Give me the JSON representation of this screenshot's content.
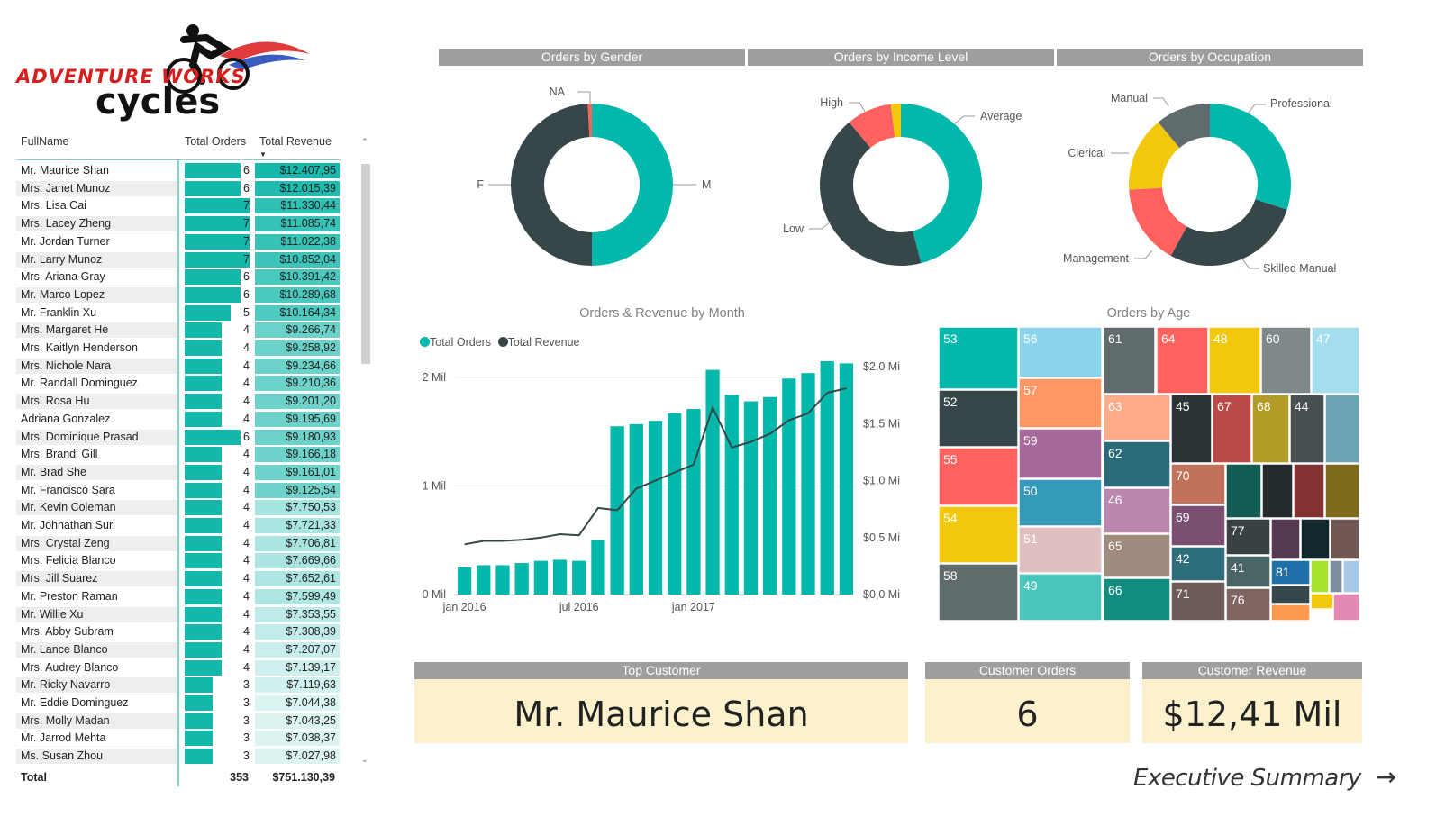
{
  "logo": {
    "line1": "ADVENTURE WORKS",
    "line2": "cycles"
  },
  "table": {
    "headers": {
      "name": "FullName",
      "orders": "Total Orders",
      "revenue": "Total Revenue"
    },
    "rows": [
      {
        "name": "Mr. Maurice Shan",
        "orders": 6,
        "revenue": "$12.407,95"
      },
      {
        "name": "Mrs. Janet Munoz",
        "orders": 6,
        "revenue": "$12.015,39"
      },
      {
        "name": "Mrs. Lisa Cai",
        "orders": 7,
        "revenue": "$11.330,44"
      },
      {
        "name": "Mrs. Lacey Zheng",
        "orders": 7,
        "revenue": "$11.085,74"
      },
      {
        "name": "Mr. Jordan Turner",
        "orders": 7,
        "revenue": "$11.022,38"
      },
      {
        "name": "Mr. Larry Munoz",
        "orders": 7,
        "revenue": "$10.852,04"
      },
      {
        "name": "Mrs. Ariana Gray",
        "orders": 6,
        "revenue": "$10.391,42"
      },
      {
        "name": "Mr. Marco Lopez",
        "orders": 6,
        "revenue": "$10.289,68"
      },
      {
        "name": "Mr. Franklin Xu",
        "orders": 5,
        "revenue": "$10.164,34"
      },
      {
        "name": "Mrs. Margaret He",
        "orders": 4,
        "revenue": "$9.266,74"
      },
      {
        "name": "Mrs. Kaitlyn Henderson",
        "orders": 4,
        "revenue": "$9.258,92"
      },
      {
        "name": "Mrs. Nichole Nara",
        "orders": 4,
        "revenue": "$9.234,66"
      },
      {
        "name": "Mr. Randall Dominguez",
        "orders": 4,
        "revenue": "$9.210,36"
      },
      {
        "name": "Mrs. Rosa Hu",
        "orders": 4,
        "revenue": "$9.201,20"
      },
      {
        "name": "Adriana Gonzalez",
        "orders": 4,
        "revenue": "$9.195,69"
      },
      {
        "name": "Mrs. Dominique Prasad",
        "orders": 6,
        "revenue": "$9.180,93"
      },
      {
        "name": "Mrs. Brandi Gill",
        "orders": 4,
        "revenue": "$9.166,18"
      },
      {
        "name": "Mr. Brad She",
        "orders": 4,
        "revenue": "$9.161,01"
      },
      {
        "name": "Mr. Francisco Sara",
        "orders": 4,
        "revenue": "$9.125,54"
      },
      {
        "name": "Mr. Kevin Coleman",
        "orders": 4,
        "revenue": "$7.750,53"
      },
      {
        "name": "Mr. Johnathan Suri",
        "orders": 4,
        "revenue": "$7.721,33"
      },
      {
        "name": "Mrs. Crystal Zeng",
        "orders": 4,
        "revenue": "$7.706,81"
      },
      {
        "name": "Mrs. Felicia Blanco",
        "orders": 4,
        "revenue": "$7.669,66"
      },
      {
        "name": "Mrs. Jill Suarez",
        "orders": 4,
        "revenue": "$7.652,61"
      },
      {
        "name": "Mr. Preston Raman",
        "orders": 4,
        "revenue": "$7.599,49"
      },
      {
        "name": "Mr. Willie Xu",
        "orders": 4,
        "revenue": "$7.353,55"
      },
      {
        "name": "Mrs. Abby Subram",
        "orders": 4,
        "revenue": "$7.308,39"
      },
      {
        "name": "Mr. Lance Blanco",
        "orders": 4,
        "revenue": "$7.207,07"
      },
      {
        "name": "Mrs. Audrey Blanco",
        "orders": 4,
        "revenue": "$7.139,17"
      },
      {
        "name": "Mr. Ricky Navarro",
        "orders": 3,
        "revenue": "$7.119,63"
      },
      {
        "name": "Mr. Eddie Dominguez",
        "orders": 3,
        "revenue": "$7.044,38"
      },
      {
        "name": "Mrs. Molly Madan",
        "orders": 3,
        "revenue": "$7.043,25"
      },
      {
        "name": "Mr. Jarrod Mehta",
        "orders": 3,
        "revenue": "$7.038,37"
      },
      {
        "name": "Ms. Susan Zhou",
        "orders": 3,
        "revenue": "$7.027,98"
      }
    ],
    "total": {
      "label": "Total",
      "orders": "353",
      "revenue": "$751.130,39"
    }
  },
  "sections": {
    "gender": "Orders by Gender",
    "income": "Orders by Income Level",
    "occupation": "Orders by Occupation",
    "month": "Orders & Revenue by Month",
    "age": "Orders by Age"
  },
  "donuts": {
    "gender": [
      {
        "label": "M",
        "value": 50,
        "color": "#01b8aa"
      },
      {
        "label": "F",
        "value": 49.2,
        "color": "#374649"
      },
      {
        "label": "NA",
        "value": 0.8,
        "color": "#fd625e"
      }
    ],
    "income": [
      {
        "label": "Average",
        "value": 46,
        "color": "#01b8aa"
      },
      {
        "label": "Low",
        "value": 43,
        "color": "#374649"
      },
      {
        "label": "High",
        "value": 9,
        "color": "#fd625e"
      },
      {
        "label": "",
        "value": 2,
        "color": "#f2c80f"
      }
    ],
    "occupation": [
      {
        "label": "Professional",
        "value": 30,
        "color": "#01b8aa"
      },
      {
        "label": "Skilled Manual",
        "value": 28,
        "color": "#374649"
      },
      {
        "label": "Management",
        "value": 16,
        "color": "#fd625e"
      },
      {
        "label": "Clerical",
        "value": 15,
        "color": "#f2c80f"
      },
      {
        "label": "Manual",
        "value": 11,
        "color": "#5f6b6d"
      }
    ]
  },
  "chart_data": {
    "type": "bar",
    "title": "Orders & Revenue by Month",
    "legend": [
      "Total Orders",
      "Total Revenue"
    ],
    "series_colors": {
      "Total Orders": "#01b8aa",
      "Total Revenue": "#374649"
    },
    "x_ticks": [
      "jan 2016",
      "jul 2016",
      "jan 2017"
    ],
    "y_left_ticks": [
      "0 Mil",
      "1 Mil",
      "2 Mil"
    ],
    "y_right_ticks": [
      "$0,0 Mi",
      "$0,5 Mi",
      "$1,0 Mi",
      "$1,5 Mi",
      "$2,0 Mi"
    ],
    "orders": [
      0.25,
      0.27,
      0.27,
      0.29,
      0.31,
      0.32,
      0.31,
      0.5,
      1.55,
      1.57,
      1.6,
      1.67,
      1.71,
      2.07,
      1.84,
      1.78,
      1.82,
      1.99,
      2.04,
      2.15,
      2.13
    ],
    "revenue": [
      0.44,
      0.47,
      0.47,
      0.48,
      0.5,
      0.53,
      0.52,
      0.76,
      0.74,
      0.93,
      1.0,
      1.07,
      1.14,
      1.64,
      1.29,
      1.34,
      1.41,
      1.53,
      1.59,
      1.77,
      1.81
    ],
    "ylim_left": [
      0,
      2.1
    ],
    "ylim_right": [
      0,
      2.0
    ]
  },
  "treemap": [
    {
      "label": "53",
      "color": "#01b8aa"
    },
    {
      "label": "56",
      "color": "#8ad4eb"
    },
    {
      "label": "61",
      "color": "#5f6b6d"
    },
    {
      "label": "64",
      "color": "#fd625e"
    },
    {
      "label": "48",
      "color": "#f2c80f"
    },
    {
      "label": "60",
      "color": "#7f898a"
    },
    {
      "label": "47",
      "color": "#a4ddee"
    },
    {
      "label": "52",
      "color": "#374649"
    },
    {
      "label": "57",
      "color": "#fe9666"
    },
    {
      "label": "63",
      "color": "#fdab89"
    },
    {
      "label": "45",
      "color": "#2a3436"
    },
    {
      "label": "67",
      "color": "#b94a47"
    },
    {
      "label": "68",
      "color": "#b29b26"
    },
    {
      "label": "44",
      "color": "#474f51"
    },
    {
      "label": "",
      "color": "#6ba5b3"
    },
    {
      "label": "55",
      "color": "#fd625e"
    },
    {
      "label": "59",
      "color": "#a66999"
    },
    {
      "label": "62",
      "color": "#2b6b79"
    },
    {
      "label": "70",
      "color": "#c0735a"
    },
    {
      "label": "",
      "color": "#135c54"
    },
    {
      "label": "",
      "color": "#232b2d"
    },
    {
      "label": "",
      "color": "#823331"
    },
    {
      "label": "",
      "color": "#7e6a1c"
    },
    {
      "label": "54",
      "color": "#f2c80f"
    },
    {
      "label": "50",
      "color": "#3599b8"
    },
    {
      "label": "46",
      "color": "#b987ad"
    },
    {
      "label": "69",
      "color": "#7b4f71"
    },
    {
      "label": "77",
      "color": "#3a4143"
    },
    {
      "label": "",
      "color": "#553a52"
    },
    {
      "label": "",
      "color": "#13282d"
    },
    {
      "label": "",
      "color": "#725855"
    },
    {
      "label": "51",
      "color": "#dfbfbf"
    },
    {
      "label": "65",
      "color": "#a0897d"
    },
    {
      "label": "42",
      "color": "#2e6e7a"
    },
    {
      "label": "41",
      "color": "#4b6466"
    },
    {
      "label": "81",
      "color": "#1f6fa8"
    },
    {
      "label": "",
      "color": "#a6e22e"
    },
    {
      "label": "",
      "color": "#7d8ea0"
    },
    {
      "label": "",
      "color": "#a7c8e6"
    },
    {
      "label": "58",
      "color": "#5f6b6d"
    },
    {
      "label": "49",
      "color": "#4ac5bb"
    },
    {
      "label": "66",
      "color": "#138e7e"
    },
    {
      "label": "71",
      "color": "#6e5a57"
    },
    {
      "label": "76",
      "color": "#7f6561"
    },
    {
      "label": "",
      "color": "#374649"
    },
    {
      "label": "",
      "color": "#f2c80f"
    },
    {
      "label": "",
      "color": "#fd9a50"
    },
    {
      "label": "",
      "color": "#e38ab4"
    }
  ],
  "cards": {
    "top_customer": {
      "header": "Top Customer",
      "value": "Mr. Maurice Shan"
    },
    "customer_orders": {
      "header": "Customer Orders",
      "value": "6"
    },
    "customer_revenue": {
      "header": "Customer Revenue",
      "value": "$12,41 Mil"
    }
  },
  "nav": {
    "executive_summary": "Executive Summary",
    "arrow": "→"
  }
}
